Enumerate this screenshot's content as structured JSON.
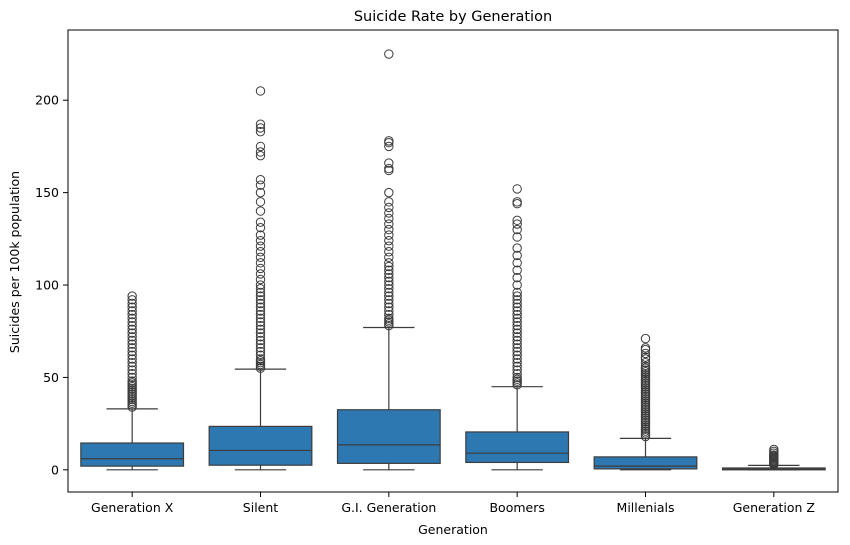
{
  "chart_data": {
    "type": "box",
    "title": "Suicide Rate by Generation",
    "xlabel": "Generation",
    "ylabel": "Suicides per 100k population",
    "ylim": [
      -12,
      238
    ],
    "yticks": [
      0,
      50,
      100,
      150,
      200
    ],
    "grid": false,
    "legend": "none",
    "colors": {
      "box_fill": "#2e78b1",
      "line": "#3c3c3c",
      "axis": "#000000",
      "flier_edge": "#3c3c3c"
    },
    "categories": [
      "Generation X",
      "Silent",
      "G.I. Generation",
      "Boomers",
      "Millenials",
      "Generation Z"
    ],
    "boxes": [
      {
        "name": "Generation X",
        "whisker_low": 0,
        "q1": 2,
        "median": 6,
        "q3": 14.5,
        "whisker_high": 33,
        "outliers": [
          34,
          35,
          36,
          37,
          38,
          39,
          40,
          41,
          42,
          43,
          44,
          45,
          46,
          47,
          48,
          50,
          52,
          54,
          56,
          58,
          60,
          62,
          64,
          66,
          68,
          70,
          72,
          74,
          76,
          78,
          80,
          82,
          84,
          86,
          88,
          90,
          92,
          94
        ]
      },
      {
        "name": "Silent",
        "whisker_low": 0,
        "q1": 2.5,
        "median": 10.5,
        "q3": 23.5,
        "whisker_high": 54.5,
        "outliers": [
          55,
          56,
          57,
          58,
          59,
          60,
          62,
          64,
          66,
          68,
          70,
          72,
          74,
          76,
          78,
          80,
          82,
          84,
          86,
          88,
          90,
          92,
          94,
          96,
          98,
          100,
          103,
          106,
          109,
          112,
          115,
          118,
          121,
          124,
          127,
          131,
          134,
          140,
          145,
          150,
          154,
          157,
          170,
          172,
          175,
          183,
          185,
          187,
          205
        ]
      },
      {
        "name": "G.I. Generation",
        "whisker_low": 0,
        "q1": 3.5,
        "median": 13.5,
        "q3": 32.5,
        "whisker_high": 77,
        "outliers": [
          78,
          79,
          80,
          81,
          82,
          84,
          86,
          88,
          90,
          92,
          94,
          96,
          98,
          100,
          102,
          104,
          106,
          108,
          110,
          112,
          115,
          118,
          121,
          124,
          127,
          130,
          133,
          136,
          139,
          142,
          145,
          150,
          162,
          163,
          166,
          175,
          177,
          178,
          225
        ]
      },
      {
        "name": "Boomers",
        "whisker_low": 0,
        "q1": 4,
        "median": 9,
        "q3": 20.5,
        "whisker_high": 45,
        "outliers": [
          46,
          47,
          48,
          49,
          50,
          52,
          54,
          56,
          58,
          60,
          62,
          64,
          66,
          68,
          70,
          72,
          74,
          76,
          78,
          80,
          82,
          84,
          86,
          88,
          90,
          92,
          94,
          96,
          100,
          104,
          108,
          112,
          116,
          120,
          126,
          130,
          133,
          135,
          144,
          145,
          152
        ]
      },
      {
        "name": "Millenials",
        "whisker_low": 0,
        "q1": 0.5,
        "median": 2,
        "q3": 7,
        "whisker_high": 17,
        "outliers": [
          18,
          19,
          20,
          21,
          22,
          23,
          24,
          25,
          26,
          27,
          28,
          29,
          30,
          31,
          32,
          33,
          34,
          35,
          36,
          37,
          38,
          39,
          40,
          41,
          42,
          43,
          44,
          45,
          46,
          47,
          48,
          49,
          50,
          51,
          52,
          53,
          54,
          55,
          56,
          58,
          60,
          61,
          63,
          65,
          66,
          71
        ]
      },
      {
        "name": "Generation Z",
        "whisker_low": 0,
        "q1": 0,
        "median": 0.3,
        "q3": 1,
        "whisker_high": 2.4,
        "outliers": [
          2.8,
          3.2,
          3.6,
          4,
          4.5,
          5,
          5.5,
          6,
          6.5,
          7,
          7.5,
          8,
          9,
          10,
          11
        ]
      }
    ]
  }
}
